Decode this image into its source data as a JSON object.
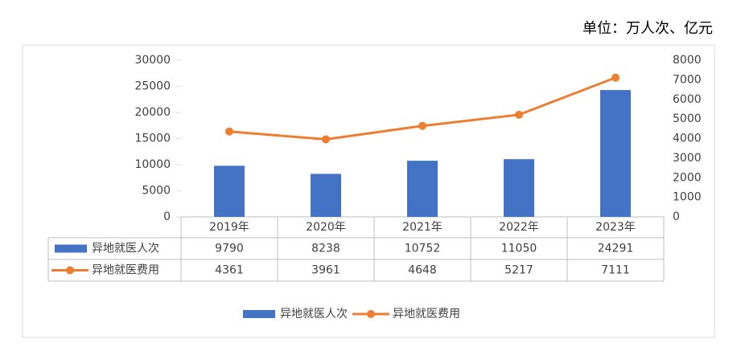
{
  "chart_data": {
    "type": "bar",
    "unit": "单位：万人次、亿元",
    "categories": [
      "2019年",
      "2020年",
      "2021年",
      "2022年",
      "2023年"
    ],
    "series": [
      {
        "name": "异地就医人次",
        "type": "bar",
        "color": "#4472c4",
        "values": [
          9790,
          8238,
          10752,
          11050,
          24291
        ]
      },
      {
        "name": "异地就医费用",
        "type": "line",
        "axis": "y2",
        "color": "#ed7d31",
        "values": [
          4361,
          3961,
          4648,
          5217,
          7111
        ]
      }
    ],
    "ylim": [
      0,
      30000
    ],
    "yticks": [
      0,
      5000,
      10000,
      15000,
      20000,
      25000,
      30000
    ],
    "y2lim": [
      0,
      8000
    ],
    "y2ticks": [
      0,
      1000,
      2000,
      3000,
      4000,
      5000,
      6000,
      7000,
      8000
    ],
    "legend": "bottom",
    "grid": false
  }
}
